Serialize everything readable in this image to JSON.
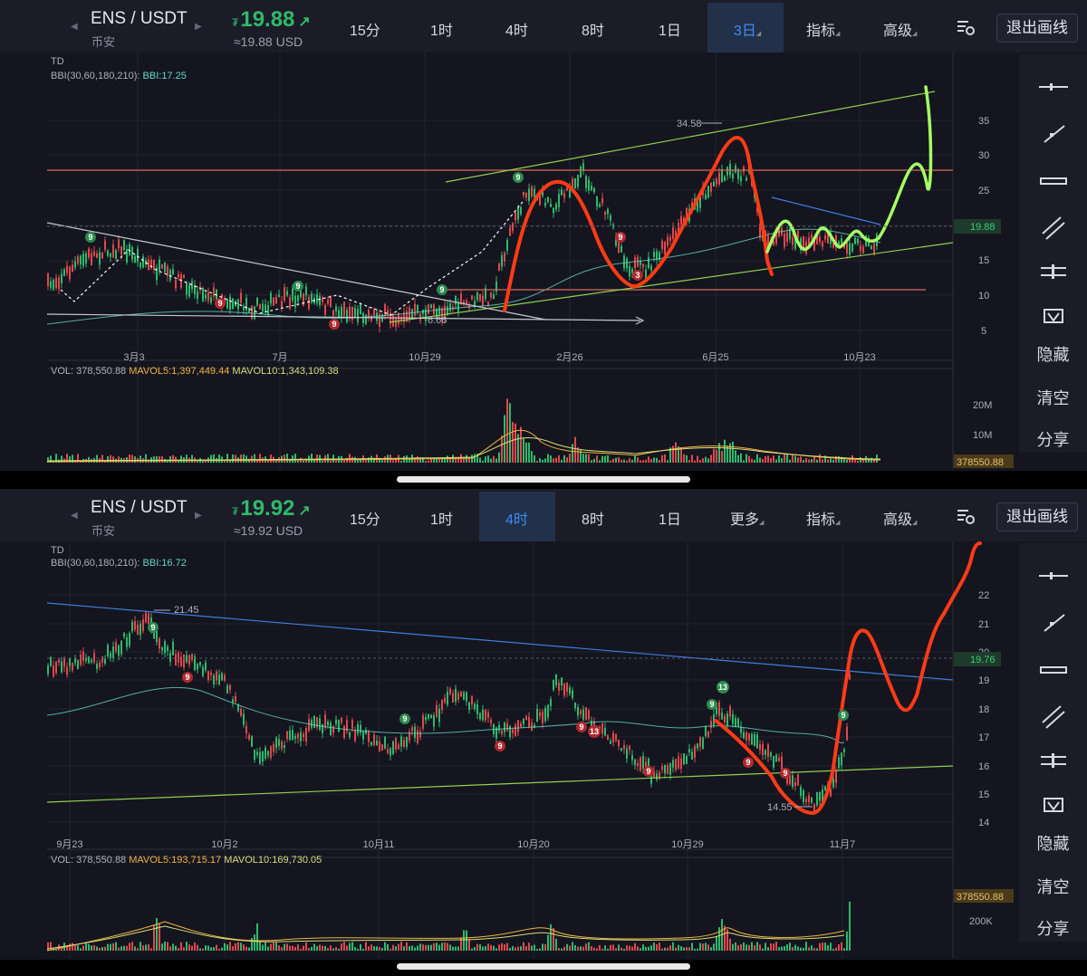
{
  "panels": [
    {
      "pair": "ENS / USDT",
      "exchange": "币安",
      "price_symbol": "₮",
      "price": "19.88",
      "arrow": "↗",
      "usd": "≈19.88 USD",
      "timeframes": [
        "15分",
        "1时",
        "4时",
        "8时",
        "1日",
        "3日",
        "指标",
        "高级"
      ],
      "active_timeframe": "3日",
      "exit_label": "退出画线",
      "indicator_label": "TD",
      "bbi_prefix": "BBI(30,60,180,210):",
      "bbi_value": "BBI:17.25",
      "price_axis": [
        "35",
        "30",
        "25",
        "20",
        "15",
        "10",
        "5"
      ],
      "current_price_tag": "19.88",
      "high_label": "34.58",
      "low_label": "6.66",
      "date_axis": [
        "3月3",
        "7月",
        "10月29",
        "2月26",
        "6月25",
        "10月23"
      ],
      "vol_label": "VOL: 378,550.88",
      "mavol5": "MAVOL5:1,397,449.44",
      "mavol10": "MAVOL10:1,343,109.38",
      "vol_axis": [
        "20M",
        "10M"
      ],
      "vol_tag": "378550.88",
      "td_markers_green": [
        "9",
        "9",
        "9",
        "9"
      ],
      "td_markers_red": [
        "9",
        "9",
        "9",
        "3"
      ]
    },
    {
      "pair": "ENS / USDT",
      "exchange": "币安",
      "price_symbol": "₮",
      "price": "19.92",
      "arrow": "↗",
      "usd": "≈19.92 USD",
      "timeframes": [
        "15分",
        "1时",
        "4时",
        "8时",
        "1日",
        "更多",
        "指标",
        "高级"
      ],
      "active_timeframe": "4时",
      "exit_label": "退出画线",
      "indicator_label": "TD",
      "bbi_prefix": "BBI(30,60,180,210):",
      "bbi_value": "BBI:16.72",
      "price_axis": [
        "22",
        "21",
        "20",
        "19",
        "18",
        "17",
        "16",
        "15",
        "14"
      ],
      "current_price_tag": "19.76",
      "high_label": "21.45",
      "low_label": "14.55",
      "date_axis": [
        "9月23",
        "10月2",
        "10月11",
        "10月20",
        "10月29",
        "11月7"
      ],
      "vol_label": "VOL: 378,550.88",
      "mavol5": "MAVOL5:193,715.17",
      "mavol10": "MAVOL10:169,730.05",
      "vol_axis": [
        "200K"
      ],
      "vol_tag": "378550.88",
      "td_markers_green": [
        "9",
        "9",
        "13",
        "9",
        "9"
      ],
      "td_markers_red": [
        "9",
        "9",
        "9",
        "13",
        "9",
        "9",
        "9"
      ]
    }
  ],
  "side_menu": {
    "hide": "隐藏",
    "clear": "清空",
    "share": "分享",
    "tools": [
      "horizontal-line-icon",
      "ray-line-icon",
      "multi-point-icon",
      "parallel-channel-icon",
      "fib-icon",
      "draw-brush-icon"
    ]
  },
  "colors": {
    "up": "#2fb96c",
    "down": "#e0484e",
    "accent": "#3d8bf5",
    "ma": "#62d6c8",
    "drawing_red": "#ff3b16",
    "drawing_green": "#a6ff64"
  }
}
